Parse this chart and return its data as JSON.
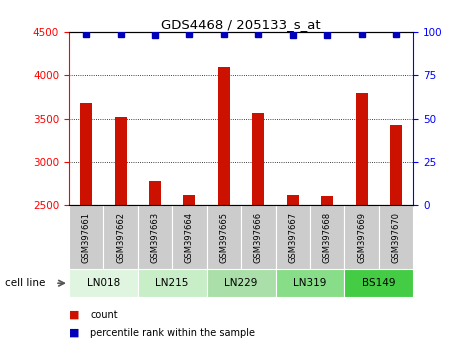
{
  "title": "GDS4468 / 205133_s_at",
  "samples": [
    "GSM397661",
    "GSM397662",
    "GSM397663",
    "GSM397664",
    "GSM397665",
    "GSM397666",
    "GSM397667",
    "GSM397668",
    "GSM397669",
    "GSM397670"
  ],
  "counts": [
    3680,
    3520,
    2780,
    2620,
    4100,
    3560,
    2620,
    2610,
    3800,
    3430
  ],
  "percentiles": [
    99,
    99,
    98,
    99,
    99,
    99,
    98,
    98,
    99,
    99
  ],
  "cell_lines": [
    {
      "name": "LN018",
      "start": 0,
      "end": 2,
      "color": "#e0f5e0"
    },
    {
      "name": "LN215",
      "start": 2,
      "end": 4,
      "color": "#c8eec8"
    },
    {
      "name": "LN229",
      "start": 4,
      "end": 6,
      "color": "#aadfaa"
    },
    {
      "name": "LN319",
      "start": 6,
      "end": 8,
      "color": "#88dd88"
    },
    {
      "name": "BS149",
      "start": 8,
      "end": 10,
      "color": "#44cc44"
    }
  ],
  "ylim_left": [
    2500,
    4500
  ],
  "ylim_right": [
    0,
    100
  ],
  "yticks_left": [
    2500,
    3000,
    3500,
    4000,
    4500
  ],
  "yticks_right": [
    0,
    25,
    50,
    75,
    100
  ],
  "bar_color": "#cc1100",
  "dot_color": "#0000bb",
  "bar_width": 0.35,
  "sample_box_color": "#cccccc",
  "legend_count_color": "#cc1100",
  "legend_dot_color": "#0000bb",
  "cell_line_label": "cell line"
}
